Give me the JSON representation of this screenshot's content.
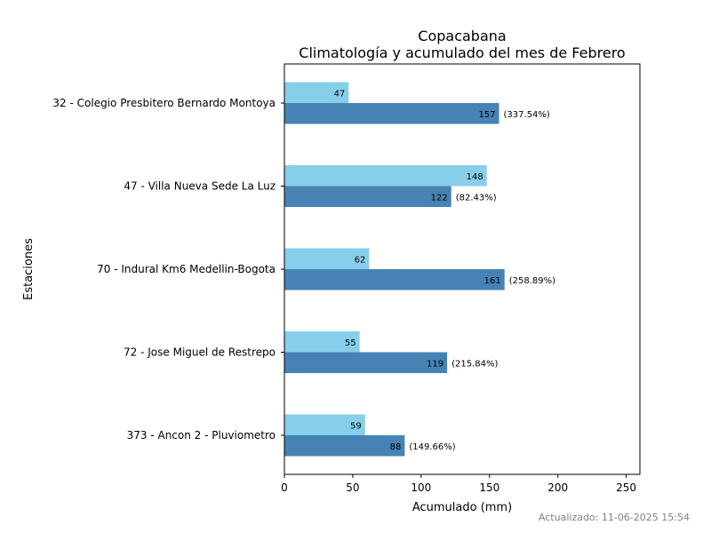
{
  "chart_data": {
    "type": "bar",
    "orientation": "horizontal",
    "title": "Copacabana",
    "subtitle": "Climatología y acumulado del mes de Febrero",
    "xlabel": "Acumulado (mm)",
    "ylabel": "Estaciones",
    "xlim": [
      0,
      260
    ],
    "xticks": [
      0,
      50,
      100,
      150,
      200,
      250
    ],
    "grid": false,
    "legend": "none",
    "categories": [
      "32 - Colegio Presbitero Bernardo Montoya",
      "47 - Villa Nueva Sede La Luz",
      "70 - Indural Km6 Medellin-Bogota",
      "72 - Jose Miguel de Restrepo",
      "373 - Ancon 2 - Pluviometro"
    ],
    "series": [
      {
        "color": "#87ceeb",
        "values": [
          47,
          148,
          62,
          55,
          59
        ],
        "labels": [
          "47",
          "148",
          "62",
          "55",
          "59"
        ]
      },
      {
        "color": "#4682b4",
        "values": [
          157,
          122,
          161,
          119,
          88
        ],
        "labels": [
          "157",
          "122",
          "161",
          "119",
          "88"
        ],
        "percent_labels": [
          "(337.54%)",
          "(82.43%)",
          "(258.89%)",
          "(215.84%)",
          "(149.66%)"
        ]
      }
    ]
  },
  "footer": {
    "updated": "Actualizado: 11-06-2025 15:54"
  }
}
